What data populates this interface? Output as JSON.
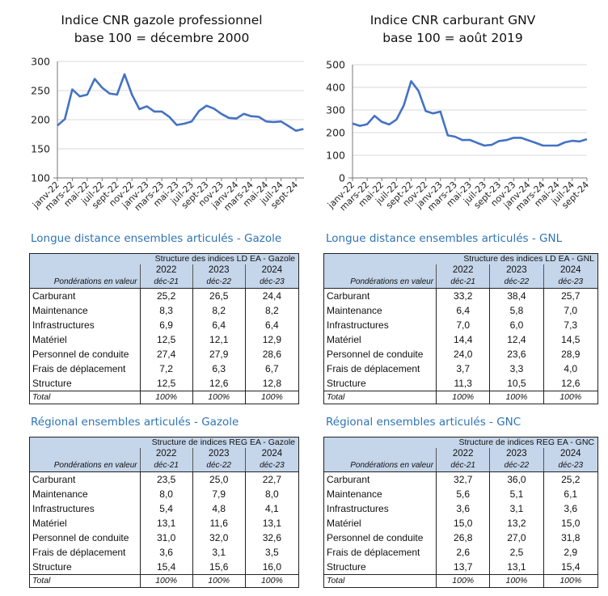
{
  "chart_data": [
    {
      "type": "line",
      "title": "Indice CNR gazole professionnel",
      "subtitle": "base 100 = décembre 2000",
      "xlabel": "",
      "ylabel": "",
      "ylim": [
        100,
        300
      ],
      "yticks": [
        100,
        150,
        200,
        250,
        300
      ],
      "grid": true,
      "tick_labels": [
        "janv-22",
        "mars-22",
        "mai-22",
        "juil-22",
        "sept-22",
        "nov-22",
        "janv-23",
        "mars-23",
        "mai-23",
        "juil-23",
        "sept-23",
        "nov-23",
        "janv-24",
        "mars-24",
        "mai-24",
        "juil-24",
        "sept-24"
      ],
      "x": [
        "janv-22",
        "févr-22",
        "mars-22",
        "avr-22",
        "mai-22",
        "juin-22",
        "juil-22",
        "août-22",
        "sept-22",
        "oct-22",
        "nov-22",
        "déc-22",
        "janv-23",
        "févr-23",
        "mars-23",
        "avr-23",
        "mai-23",
        "juin-23",
        "juil-23",
        "août-23",
        "sept-23",
        "oct-23",
        "nov-23",
        "déc-23",
        "janv-24",
        "févr-24",
        "mars-24",
        "avr-24",
        "mai-24",
        "juin-24",
        "juil-24",
        "août-24",
        "sept-24",
        "oct-24"
      ],
      "series": [
        {
          "name": "Indice CNR gazole professionnel",
          "color": "#4472c4",
          "values": [
            190,
            201,
            252,
            240,
            243,
            270,
            255,
            245,
            243,
            278,
            243,
            218,
            223,
            214,
            214,
            205,
            191,
            193,
            197,
            215,
            224,
            219,
            210,
            203,
            202,
            210,
            206,
            205,
            197,
            196,
            197,
            189,
            181,
            184
          ]
        }
      ]
    },
    {
      "type": "line",
      "title": "Indice CNR carburant GNV",
      "subtitle": "base 100 = août 2019",
      "xlabel": "",
      "ylabel": "",
      "ylim": [
        0,
        500
      ],
      "yticks": [
        0,
        100,
        200,
        300,
        400,
        500
      ],
      "grid": true,
      "tick_labels": [
        "janv-22",
        "mars-22",
        "mai-22",
        "juil-22",
        "sept-22",
        "nov-22",
        "janv-23",
        "mars-23",
        "mai-23",
        "juil-23",
        "sept-23",
        "nov-23",
        "janv-24",
        "mars-24",
        "mai-24",
        "juil-24",
        "sept-24"
      ],
      "x": [
        "janv-22",
        "févr-22",
        "mars-22",
        "avr-22",
        "mai-22",
        "juin-22",
        "juil-22",
        "août-22",
        "sept-22",
        "oct-22",
        "nov-22",
        "déc-22",
        "janv-23",
        "févr-23",
        "mars-23",
        "avr-23",
        "mai-23",
        "juin-23",
        "juil-23",
        "août-23",
        "sept-23",
        "oct-23",
        "nov-23",
        "déc-23",
        "janv-24",
        "févr-24",
        "mars-24",
        "avr-24",
        "mai-24",
        "juin-24",
        "juil-24",
        "août-24",
        "sept-24"
      ],
      "series": [
        {
          "name": "Indice CNR carburant GNV",
          "color": "#4472c4",
          "values": [
            240,
            230,
            237,
            274,
            248,
            236,
            258,
            320,
            427,
            385,
            295,
            285,
            293,
            188,
            182,
            167,
            168,
            155,
            143,
            146,
            163,
            167,
            177,
            177,
            166,
            155,
            143,
            143,
            143,
            157,
            164,
            161,
            171
          ]
        }
      ]
    }
  ],
  "colors": {
    "section_title": "#2e74b5",
    "table_header_bg": "#c5d5ea",
    "line": "#4472c4"
  },
  "tables": [
    {
      "section_title": "Longue distance ensembles articulés - Gazole",
      "structure_label": "Structure des indices LD EA - Gazole",
      "weights_label": "Pondérations en valeur",
      "years": [
        "2022",
        "2023",
        "2024"
      ],
      "dates": [
        "déc-21",
        "déc-22",
        "déc-23"
      ],
      "rows": [
        {
          "label": "Carburant",
          "values": [
            "25,2",
            "26,5",
            "24,4"
          ]
        },
        {
          "label": "Maintenance",
          "values": [
            "8,3",
            "8,2",
            "8,2"
          ]
        },
        {
          "label": "Infrastructures",
          "values": [
            "6,9",
            "6,4",
            "6,4"
          ]
        },
        {
          "label": "Matériel",
          "values": [
            "12,5",
            "12,1",
            "12,9"
          ]
        },
        {
          "label": "Personnel de conduite",
          "values": [
            "27,4",
            "27,9",
            "28,6"
          ]
        },
        {
          "label": "Frais de déplacement",
          "values": [
            "7,2",
            "6,3",
            "6,7"
          ]
        },
        {
          "label": "Structure",
          "values": [
            "12,5",
            "12,6",
            "12,8"
          ]
        }
      ],
      "total": {
        "label": "Total",
        "values": [
          "100%",
          "100%",
          "100%"
        ]
      }
    },
    {
      "section_title": "Longue distance ensembles articulés - GNL",
      "structure_label": "Structure des indices LD EA - GNL",
      "weights_label": "Pondérations en valeur",
      "years": [
        "2022",
        "2023",
        "2024"
      ],
      "dates": [
        "déc-21",
        "déc-22",
        "déc-23"
      ],
      "rows": [
        {
          "label": "Carburant",
          "values": [
            "33,2",
            "38,4",
            "25,7"
          ]
        },
        {
          "label": "Maintenance",
          "values": [
            "6,4",
            "5,8",
            "7,0"
          ]
        },
        {
          "label": "Infrastructures",
          "values": [
            "7,0",
            "6,0",
            "7,3"
          ]
        },
        {
          "label": "Matériel",
          "values": [
            "14,4",
            "12,4",
            "14,5"
          ]
        },
        {
          "label": "Personnel de conduite",
          "values": [
            "24,0",
            "23,6",
            "28,9"
          ]
        },
        {
          "label": "Frais de déplacement",
          "values": [
            "3,7",
            "3,3",
            "4,0"
          ]
        },
        {
          "label": "Structure",
          "values": [
            "11,3",
            "10,5",
            "12,6"
          ]
        }
      ],
      "total": {
        "label": "Total",
        "values": [
          "100%",
          "100%",
          "100%"
        ]
      }
    },
    {
      "section_title": "Régional ensembles articulés - Gazole",
      "structure_label": "Structure de indices REG EA - Gazole",
      "weights_label": "Pondérations en valeur",
      "years": [
        "2022",
        "2023",
        "2024"
      ],
      "dates": [
        "déc-21",
        "déc-22",
        "déc-23"
      ],
      "rows": [
        {
          "label": "Carburant",
          "values": [
            "23,5",
            "25,0",
            "22,7"
          ]
        },
        {
          "label": "Maintenance",
          "values": [
            "8,0",
            "7,9",
            "8,0"
          ]
        },
        {
          "label": "Infrastructures",
          "values": [
            "5,4",
            "4,8",
            "4,1"
          ]
        },
        {
          "label": "Matériel",
          "values": [
            "13,1",
            "11,6",
            "13,1"
          ]
        },
        {
          "label": "Personnel de conduite",
          "values": [
            "31,0",
            "32,0",
            "32,6"
          ]
        },
        {
          "label": "Frais de déplacement",
          "values": [
            "3,6",
            "3,1",
            "3,5"
          ]
        },
        {
          "label": "Structure",
          "values": [
            "15,4",
            "15,6",
            "16,0"
          ]
        }
      ],
      "total": {
        "label": "Total",
        "values": [
          "100%",
          "100%",
          "100%"
        ]
      }
    },
    {
      "section_title": "Régional ensembles articulés - GNC",
      "structure_label": "Structure de indices REG EA - GNC",
      "weights_label": "Pondérations en valeur",
      "years": [
        "2022",
        "2023",
        "2024"
      ],
      "dates": [
        "déc-21",
        "déc-22",
        "déc-23"
      ],
      "rows": [
        {
          "label": "Carburant",
          "values": [
            "32,7",
            "36,0",
            "25,2"
          ]
        },
        {
          "label": "Maintenance",
          "values": [
            "5,6",
            "5,1",
            "6,1"
          ]
        },
        {
          "label": "Infrastructures",
          "values": [
            "3,6",
            "3,1",
            "3,6"
          ]
        },
        {
          "label": "Matériel",
          "values": [
            "15,0",
            "13,2",
            "15,0"
          ]
        },
        {
          "label": "Personnel de conduite",
          "values": [
            "26,8",
            "27,0",
            "31,8"
          ]
        },
        {
          "label": "Frais de déplacement",
          "values": [
            "2,6",
            "2,5",
            "2,9"
          ]
        },
        {
          "label": "Structure",
          "values": [
            "13,7",
            "13,1",
            "15,4"
          ]
        }
      ],
      "total": {
        "label": "Total",
        "values": [
          "100%",
          "100%",
          "100%"
        ]
      }
    }
  ]
}
